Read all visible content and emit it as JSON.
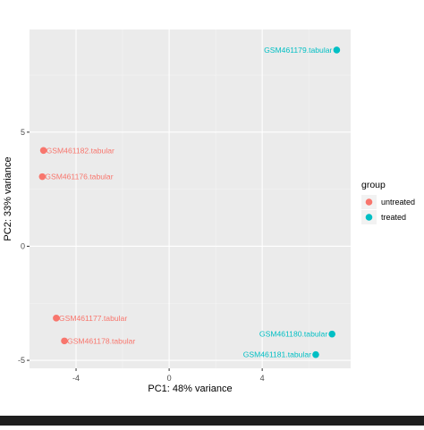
{
  "chart_data": {
    "type": "scatter",
    "title": "",
    "xlabel": "PC1: 48% variance",
    "ylabel": "PC2: 33% variance",
    "xlim": [
      -6.0,
      7.8
    ],
    "ylim": [
      -5.35,
      9.5
    ],
    "xticks": [
      -4,
      0,
      4
    ],
    "xtick_labels": [
      "-4",
      "0",
      "4"
    ],
    "yticks": [
      -5,
      0,
      5
    ],
    "ytick_labels": [
      "-5",
      "0",
      "5"
    ],
    "grid": true,
    "legend": {
      "title": "group",
      "position": "right",
      "entries": [
        {
          "label": "untreated",
          "color": "#F8766D"
        },
        {
          "label": "treated",
          "color": "#00BFC4"
        }
      ]
    },
    "series": [
      {
        "name": "untreated",
        "color": "#F8766D",
        "points": [
          {
            "x": -5.4,
            "y": 4.2,
            "label": "GSM461182.tabular"
          },
          {
            "x": -5.45,
            "y": 3.05,
            "label": "GSM461176.tabular"
          },
          {
            "x": -4.85,
            "y": -3.15,
            "label": "GSM461177.tabular"
          },
          {
            "x": -4.5,
            "y": -4.15,
            "label": "GSM461178.tabular"
          }
        ]
      },
      {
        "name": "treated",
        "color": "#00BFC4",
        "points": [
          {
            "x": 7.2,
            "y": 8.6,
            "label": "GSM461179.tabular"
          },
          {
            "x": 7.0,
            "y": -3.85,
            "label": "GSM461180.tabular"
          },
          {
            "x": 6.3,
            "y": -4.75,
            "label": "GSM461181.tabular"
          }
        ]
      }
    ]
  },
  "colors": {
    "panel_background": "#EBEBEB",
    "grid_major": "#FFFFFF",
    "grid_minor": "#F4F4F4",
    "axis_text": "#4D4D4D"
  }
}
